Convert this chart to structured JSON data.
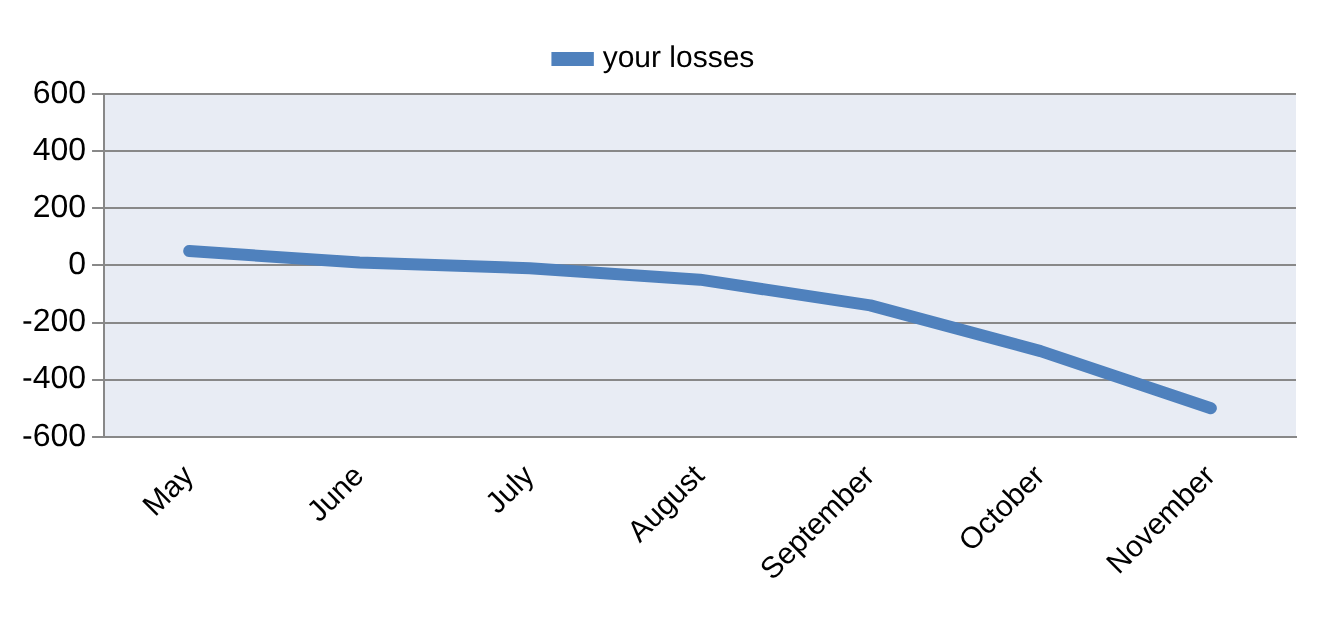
{
  "chart_data": {
    "type": "line",
    "categories": [
      "May",
      "June",
      "July",
      "August",
      "September",
      "October",
      "November"
    ],
    "series": [
      {
        "name": "your losses",
        "color": "#4f81bd",
        "values": [
          50,
          10,
          -10,
          -50,
          -140,
          -300,
          -500
        ]
      }
    ],
    "ylim": [
      -600,
      600
    ],
    "yticks": [
      -600,
      -400,
      -200,
      0,
      200,
      400,
      600
    ],
    "grid": "y",
    "legend": "top",
    "marker": "none",
    "line_style": "solid"
  }
}
